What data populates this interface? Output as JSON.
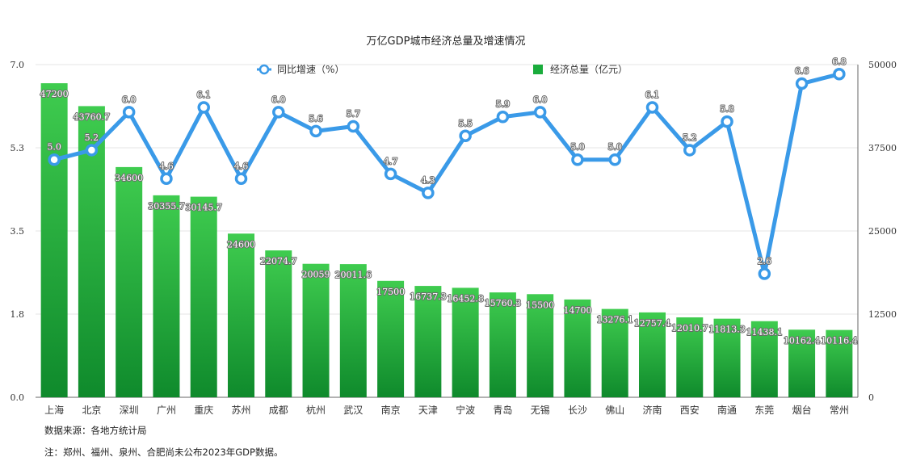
{
  "chart_data": {
    "type": "bar+line",
    "title": "万亿GDP城市经济总量及增速情况",
    "categories": [
      "上海",
      "北京",
      "深圳",
      "广州",
      "重庆",
      "苏州",
      "成都",
      "杭州",
      "武汉",
      "南京",
      "天津",
      "宁波",
      "青岛",
      "无锡",
      "长沙",
      "佛山",
      "济南",
      "西安",
      "南通",
      "东莞",
      "烟台",
      "常州"
    ],
    "series": [
      {
        "name": "经济总量（亿元）",
        "type": "bar",
        "axis": "right",
        "values": [
          47200,
          43760.7,
          34600,
          30355.7,
          30145.7,
          24600,
          22074.7,
          20059,
          20011.6,
          17500,
          16737.3,
          16452.8,
          15760.3,
          15500,
          14700,
          13276.1,
          12757.4,
          12010.7,
          11813.3,
          11438.1,
          10162.4,
          10116.4
        ],
        "labels": [
          "47200",
          "43760.7",
          "34600",
          "30355.7",
          "30145.7",
          "24600",
          "22074.7",
          "20059",
          "20011.6",
          "17500",
          "16737.3",
          "16452.8",
          "15760.3",
          "15500",
          "14700",
          "13276.1",
          "12757.4",
          "12010.7",
          "11813.3",
          "11438.1",
          "10162.4",
          "10116.4"
        ],
        "color": "#1aac3c"
      },
      {
        "name": "同比增速（%）",
        "type": "line",
        "axis": "left",
        "values": [
          5.0,
          5.2,
          6.0,
          4.6,
          6.1,
          4.6,
          6.0,
          5.6,
          5.7,
          4.7,
          4.3,
          5.5,
          5.9,
          6.0,
          5.0,
          5.0,
          6.1,
          5.2,
          5.8,
          2.6,
          6.6,
          6.8
        ],
        "labels": [
          "5.0",
          "5.2",
          "6.0",
          "4.6",
          "6.1",
          "4.6",
          "6.0",
          "5.6",
          "5.7",
          "4.7",
          "4.3",
          "5.5",
          "5.9",
          "6.0",
          "5.0",
          "5.0",
          "6.1",
          "5.2",
          "5.8",
          "2.6",
          "6.6",
          "6.8"
        ],
        "color": "#3a9ae8"
      }
    ],
    "y_left": {
      "min": 0,
      "max": 7.0,
      "ticks": [
        "0.0",
        "1.8",
        "3.5",
        "5.3",
        "7.0"
      ],
      "tick_values": [
        0,
        1.75,
        3.5,
        5.25,
        7.0
      ]
    },
    "y_right": {
      "min": 0,
      "max": 50000,
      "ticks": [
        "0",
        "12500",
        "25000",
        "37500",
        "50000"
      ],
      "tick_values": [
        0,
        12500,
        25000,
        37500,
        50000
      ]
    },
    "legend": [
      {
        "name": "同比增速（%）",
        "marker": "circle"
      },
      {
        "name": "经济总量（亿元）",
        "marker": "square"
      }
    ],
    "legend_position": "top-center",
    "grid": true
  },
  "notes": {
    "source": "数据来源：各地方统计局",
    "footnote": "注：郑州、福州、泉州、合肥尚未公布2023年GDP数据。"
  }
}
